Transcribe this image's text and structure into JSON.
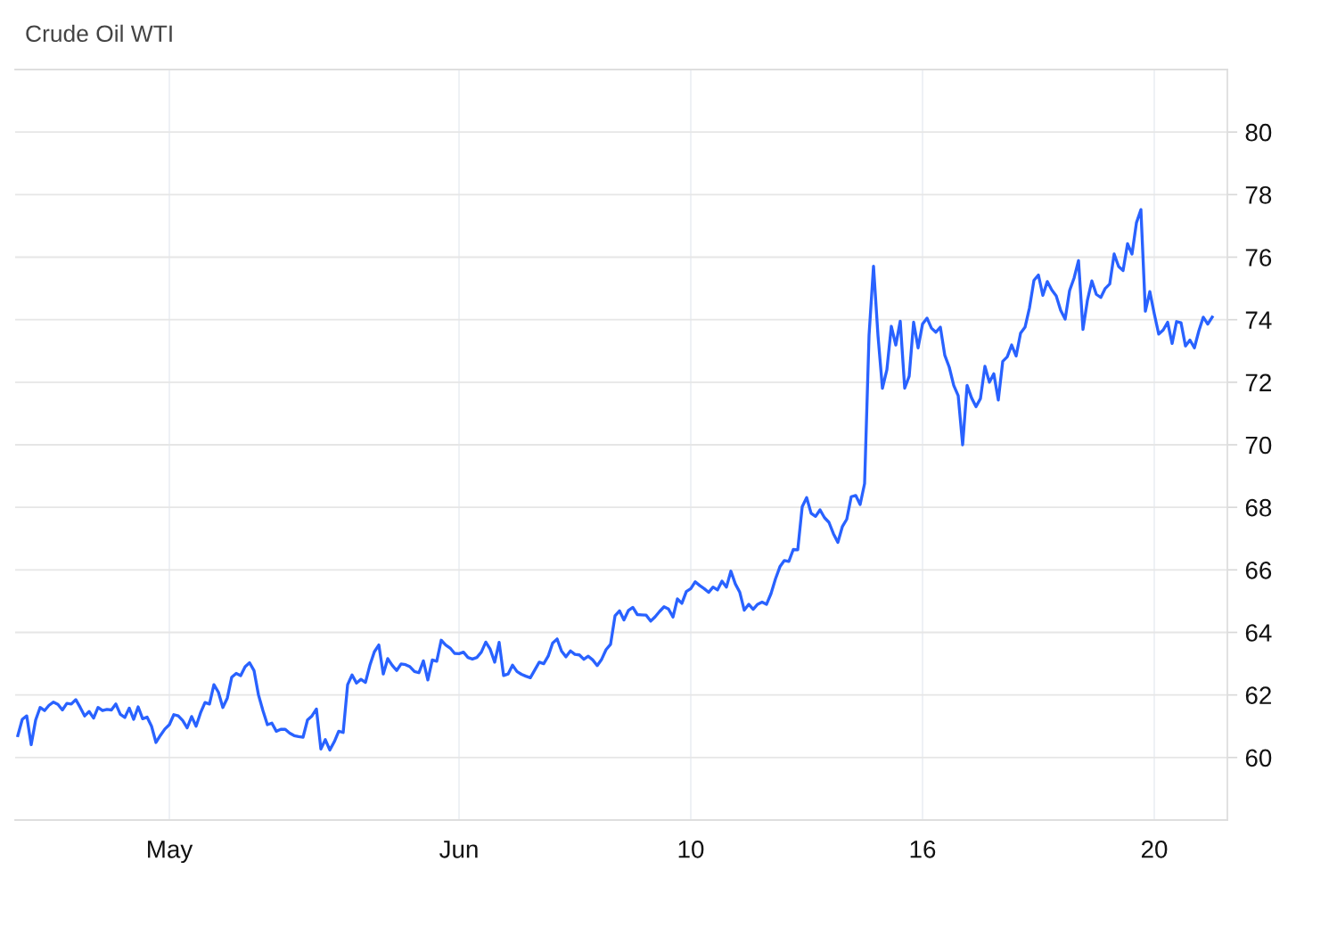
{
  "chart_data": {
    "type": "line",
    "title": "Crude Oil WTI",
    "categories": [
      null,
      null,
      null,
      null,
      null,
      null,
      null,
      null,
      null,
      null,
      null,
      null,
      null,
      null,
      null,
      null,
      null,
      null,
      null,
      null,
      null,
      null,
      null,
      null,
      null,
      null,
      null,
      null,
      null,
      null,
      null,
      null,
      null,
      null,
      "May",
      null,
      null,
      null,
      null,
      null,
      null,
      null,
      null,
      null,
      null,
      null,
      null,
      null,
      null,
      null,
      null,
      null,
      null,
      null,
      null,
      null,
      null,
      null,
      null,
      null,
      null,
      null,
      null,
      null,
      null,
      null,
      null,
      null,
      null,
      null,
      null,
      null,
      null,
      null,
      null,
      null,
      null,
      null,
      null,
      null,
      null,
      null,
      null,
      null,
      null,
      null,
      null,
      null,
      null,
      null,
      null,
      null,
      null,
      null,
      null,
      null,
      null,
      null,
      null,
      "Jun",
      null,
      null,
      null,
      null,
      null,
      null,
      null,
      null,
      null,
      null,
      null,
      null,
      null,
      null,
      null,
      null,
      null,
      null,
      null,
      null,
      null,
      null,
      null,
      null,
      null,
      null,
      null,
      null,
      null,
      null,
      null,
      null,
      null,
      null,
      null,
      null,
      null,
      null,
      null,
      null,
      null,
      null,
      null,
      null,
      null,
      null,
      null,
      null,
      null,
      null,
      null,
      "10",
      null,
      null,
      null,
      null,
      null,
      null,
      null,
      null,
      null,
      null,
      null,
      null,
      null,
      null,
      null,
      null,
      null,
      null,
      null,
      null,
      null,
      null,
      null,
      null,
      null,
      null,
      null,
      null,
      null,
      null,
      null,
      null,
      null,
      null,
      null,
      null,
      null,
      null,
      null,
      null,
      null,
      null,
      null,
      null,
      null,
      null,
      null,
      null,
      null,
      null,
      null,
      "16",
      null,
      null,
      null,
      null,
      null,
      null,
      null,
      null,
      null,
      null,
      null,
      null,
      null,
      null,
      null,
      null,
      null,
      null,
      null,
      null,
      null,
      null,
      null,
      null,
      null,
      null,
      null,
      null,
      null,
      null,
      null,
      null,
      null,
      null,
      null,
      null,
      null,
      null,
      null,
      null,
      null,
      null,
      null,
      null,
      null,
      null,
      null,
      null,
      null,
      null,
      null,
      "20",
      null,
      null,
      null,
      null,
      null,
      null,
      null,
      null,
      null,
      null,
      null,
      null,
      null
    ],
    "series": [
      {
        "color": "#2962ff",
        "values": [
          60.7,
          61.22,
          61.33,
          60.41,
          61.2,
          61.6,
          61.5,
          61.67,
          61.77,
          61.7,
          61.52,
          61.73,
          61.71,
          61.85,
          61.6,
          61.33,
          61.47,
          61.26,
          61.6,
          61.5,
          61.54,
          61.52,
          61.71,
          61.38,
          61.28,
          61.58,
          61.22,
          61.62,
          61.24,
          61.29,
          61.0,
          60.48,
          60.71,
          60.91,
          61.05,
          61.37,
          61.33,
          61.18,
          60.95,
          61.31,
          61.0,
          61.43,
          61.76,
          61.71,
          62.33,
          62.09,
          61.6,
          61.9,
          62.57,
          62.69,
          62.62,
          62.9,
          63.03,
          62.78,
          62.0,
          61.5,
          61.05,
          61.1,
          60.84,
          60.9,
          60.9,
          60.78,
          60.7,
          60.67,
          60.65,
          61.2,
          61.33,
          61.55,
          60.27,
          60.57,
          60.24,
          60.5,
          60.84,
          60.8,
          62.33,
          62.64,
          62.38,
          62.5,
          62.4,
          62.95,
          63.38,
          63.6,
          62.67,
          63.16,
          62.95,
          62.78,
          62.99,
          62.97,
          62.9,
          62.75,
          62.71,
          63.09,
          62.48,
          63.12,
          63.08,
          63.75,
          63.6,
          63.5,
          63.33,
          63.32,
          63.37,
          63.2,
          63.15,
          63.2,
          63.37,
          63.69,
          63.46,
          63.05,
          63.68,
          62.62,
          62.67,
          62.95,
          62.75,
          62.66,
          62.6,
          62.55,
          62.8,
          63.05,
          63.0,
          63.24,
          63.66,
          63.79,
          63.4,
          63.22,
          63.41,
          63.3,
          63.28,
          63.14,
          63.24,
          63.12,
          62.94,
          63.14,
          63.45,
          63.62,
          64.53,
          64.69,
          64.4,
          64.7,
          64.8,
          64.57,
          64.56,
          64.55,
          64.36,
          64.5,
          64.67,
          64.82,
          64.75,
          64.49,
          65.07,
          64.93,
          65.31,
          65.4,
          65.62,
          65.5,
          65.4,
          65.28,
          65.45,
          65.36,
          65.64,
          65.45,
          65.96,
          65.55,
          65.28,
          64.71,
          64.9,
          64.74,
          64.9,
          64.97,
          64.9,
          65.24,
          65.71,
          66.1,
          66.3,
          66.27,
          66.65,
          66.64,
          68.02,
          68.31,
          67.81,
          67.71,
          67.92,
          67.67,
          67.52,
          67.16,
          66.88,
          67.38,
          67.62,
          68.34,
          68.38,
          68.09,
          68.76,
          73.5,
          75.71,
          73.5,
          71.81,
          72.4,
          73.79,
          73.19,
          73.95,
          71.81,
          72.19,
          73.92,
          73.1,
          73.86,
          74.05,
          73.73,
          73.6,
          73.76,
          72.86,
          72.48,
          71.9,
          71.57,
          70.0,
          71.9,
          71.5,
          71.22,
          71.48,
          72.51,
          72.0,
          72.27,
          71.43,
          72.67,
          72.81,
          73.19,
          72.84,
          73.57,
          73.76,
          74.38,
          75.26,
          75.43,
          74.78,
          75.22,
          74.95,
          74.76,
          74.3,
          74.02,
          74.93,
          75.33,
          75.89,
          73.69,
          74.62,
          75.24,
          74.81,
          74.71,
          75.0,
          75.14,
          76.1,
          75.7,
          75.57,
          76.43,
          76.1,
          77.1,
          77.52,
          74.27,
          74.9,
          74.19,
          73.54,
          73.67,
          73.92,
          73.24,
          73.94,
          73.9,
          73.16,
          73.35,
          73.1,
          73.64,
          74.08,
          73.86,
          74.08
        ]
      }
    ],
    "ylim": [
      58,
      82
    ],
    "yticks": [
      60,
      62,
      64,
      66,
      68,
      70,
      72,
      74,
      76,
      78,
      80
    ],
    "grid": true,
    "line_style": "solid"
  }
}
